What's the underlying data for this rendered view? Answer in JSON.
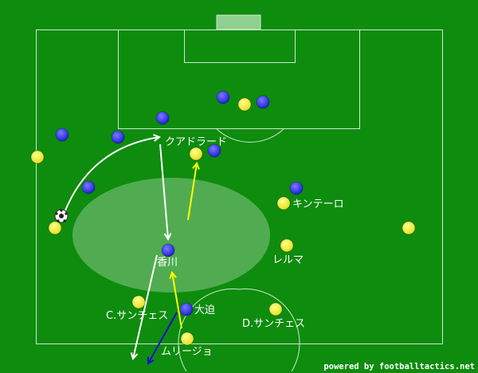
{
  "colors": {
    "pitch": "#0e8c0e",
    "home": "#f5f032",
    "away": "#3a3ae8",
    "pass_arrow": "#ffffff",
    "run_home": "#ffff00",
    "run_away": "#1010d0"
  },
  "players": {
    "kuadrado": "クアドラード",
    "kintero": "キンテーロ",
    "kagawa": "香川",
    "lerma": "レルマ",
    "c_sanchez": "C.サンチェス",
    "osako": "大迫",
    "d_sanchez": "D.サンチェス",
    "murillo": "ムリージョ"
  },
  "credit": "powered by footballtactics.net",
  "ball_icon": "soccer-ball-icon"
}
